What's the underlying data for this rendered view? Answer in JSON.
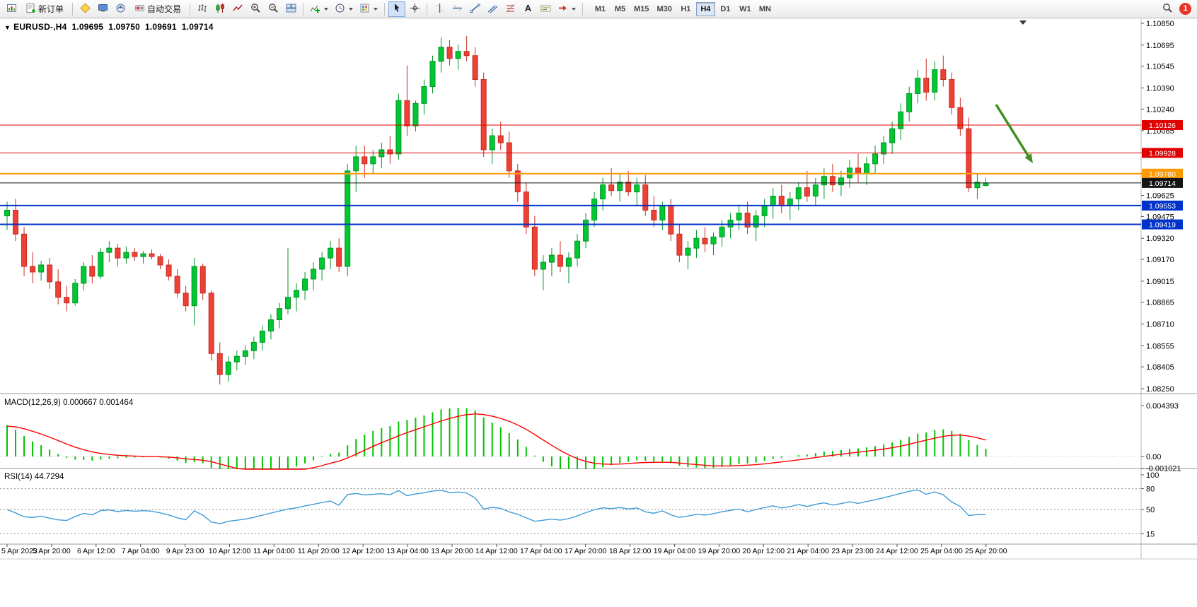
{
  "toolbar": {
    "new_order_label": "新订单",
    "autotrading_label": "自动交易",
    "timeframes": [
      "M1",
      "M5",
      "M15",
      "M30",
      "H1",
      "H4",
      "D1",
      "W1",
      "MN"
    ],
    "active_timeframe": "H4",
    "notification_count": "1"
  },
  "chart": {
    "symbol": "EURUSD-,H4",
    "ohlc": {
      "open": "1.09695",
      "high": "1.09750",
      "low": "1.09691",
      "close": "1.09714"
    },
    "price_axis_labels": [
      "1.10850",
      "1.10695",
      "1.10545",
      "1.10390",
      "1.10240",
      "1.10085",
      "1.09930",
      "1.09780",
      "1.09625",
      "1.09475",
      "1.09320",
      "1.09170",
      "1.09015",
      "1.08865",
      "1.08710",
      "1.08555",
      "1.08405",
      "1.08250"
    ],
    "hlines": [
      {
        "label": "1.10126",
        "price": 1.10126,
        "color": "#e00000",
        "width": 1
      },
      {
        "label": "1.09928",
        "price": 1.09928,
        "color": "#e00000",
        "width": 1
      },
      {
        "label": "1.09780",
        "price": 1.0978,
        "color": "#ff9900",
        "width": 2
      },
      {
        "label": "1.09714",
        "price": 1.09714,
        "color": "#141414",
        "width": 1
      },
      {
        "label": "1.09553",
        "price": 1.09553,
        "color": "#0033cc",
        "width": 2
      },
      {
        "label": "1.09419",
        "price": 1.09419,
        "color": "#0033cc",
        "width": 2
      }
    ],
    "time_axis_labels": [
      "5 Apr 2023",
      "5 Apr 20:00",
      "6 Apr 12:00",
      "7 Apr 04:00",
      "9 Apr 23:00",
      "10 Apr 12:00",
      "11 Apr 04:00",
      "11 Apr 20:00",
      "12 Apr 12:00",
      "13 Apr 04:00",
      "13 Apr 20:00",
      "14 Apr 12:00",
      "17 Apr 04:00",
      "17 Apr 20:00",
      "18 Apr 12:00",
      "19 Apr 04:00",
      "19 Apr 20:00",
      "20 Apr 12:00",
      "21 Apr 04:00",
      "23 Apr 23:00",
      "24 Apr 12:00",
      "25 Apr 04:00",
      "25 Apr 20:00"
    ],
    "colors": {
      "up": "#00c832",
      "up_stroke": "#009623",
      "down": "#ee4136",
      "down_stroke": "#c62c22",
      "macd_bar": "#00c400",
      "macd_signal": "#ff0000",
      "rsi_line": "#3e9bd8",
      "annotation": "#3f8f1f"
    }
  },
  "macd": {
    "label": "MACD(12,26,9) 0.000667 0.001464",
    "axis_labels": [
      "0.004393",
      "0.00",
      "-0.001021"
    ]
  },
  "rsi": {
    "label": "RSI(14) 44.7294",
    "axis_labels": [
      "100",
      "80",
      "50",
      "15"
    ],
    "levels": [
      80,
      50,
      15
    ]
  },
  "chart_data": {
    "type": "candlestick",
    "symbol": "EURUSD",
    "timeframe": "H4",
    "date_range": "5 Apr 2023 - 25 Apr 2023",
    "price_range": [
      1.0825,
      1.1085
    ],
    "columns": [
      "open",
      "high",
      "low",
      "close"
    ],
    "candles": [
      [
        1.0948,
        1.0958,
        1.0938,
        1.0952
      ],
      [
        1.0952,
        1.096,
        1.093,
        1.0935
      ],
      [
        1.0935,
        1.094,
        1.0905,
        1.0912
      ],
      [
        1.0912,
        1.0922,
        1.09,
        1.0908
      ],
      [
        1.0908,
        1.0916,
        1.0902,
        1.0913
      ],
      [
        1.0913,
        1.0918,
        1.0896,
        1.0901
      ],
      [
        1.0901,
        1.091,
        1.0885,
        1.089
      ],
      [
        1.089,
        1.0898,
        1.088,
        1.0886
      ],
      [
        1.0886,
        1.0903,
        1.0884,
        1.09
      ],
      [
        1.09,
        1.0915,
        1.0895,
        1.0912
      ],
      [
        1.0912,
        1.092,
        1.09,
        1.0905
      ],
      [
        1.0905,
        1.0925,
        1.0903,
        1.0922
      ],
      [
        1.0922,
        1.093,
        1.0915,
        1.0925
      ],
      [
        1.0925,
        1.0928,
        1.0912,
        1.0918
      ],
      [
        1.0918,
        1.0926,
        1.0914,
        1.0922
      ],
      [
        1.0922,
        1.0925,
        1.0916,
        1.0919
      ],
      [
        1.0919,
        1.0923,
        1.0914,
        1.0921
      ],
      [
        1.0921,
        1.0924,
        1.0917,
        1.0919
      ],
      [
        1.0919,
        1.0921,
        1.091,
        1.0913
      ],
      [
        1.0913,
        1.0917,
        1.0902,
        1.0905
      ],
      [
        1.0905,
        1.091,
        1.089,
        1.0893
      ],
      [
        1.0893,
        1.0898,
        1.088,
        1.0884
      ],
      [
        1.0884,
        1.0918,
        1.087,
        1.0912
      ],
      [
        1.0912,
        1.0914,
        1.0888,
        1.0893
      ],
      [
        1.0893,
        1.0895,
        1.0845,
        1.085
      ],
      [
        1.085,
        1.0858,
        1.0828,
        1.0835
      ],
      [
        1.0835,
        1.0848,
        1.083,
        1.0844
      ],
      [
        1.0844,
        1.0852,
        1.0838,
        1.0848
      ],
      [
        1.0848,
        1.0856,
        1.0842,
        1.0852
      ],
      [
        1.0852,
        1.0862,
        1.0846,
        1.0858
      ],
      [
        1.0858,
        1.087,
        1.0852,
        1.0866
      ],
      [
        1.0866,
        1.0878,
        1.086,
        1.0874
      ],
      [
        1.0874,
        1.0886,
        1.0868,
        1.0882
      ],
      [
        1.0882,
        1.0925,
        1.0878,
        1.089
      ],
      [
        1.089,
        1.09,
        1.088,
        1.0895
      ],
      [
        1.0895,
        1.0908,
        1.0888,
        1.0903
      ],
      [
        1.0903,
        1.0915,
        1.0895,
        1.091
      ],
      [
        1.091,
        1.0922,
        1.0902,
        1.0918
      ],
      [
        1.0918,
        1.093,
        1.091,
        1.0925
      ],
      [
        1.0925,
        1.0932,
        1.0908,
        1.0912
      ],
      [
        1.0912,
        1.0985,
        1.0905,
        1.098
      ],
      [
        1.098,
        1.0998,
        1.0965,
        1.099
      ],
      [
        1.099,
        1.0998,
        1.0975,
        1.0985
      ],
      [
        1.0985,
        1.0995,
        1.0978,
        1.099
      ],
      [
        1.099,
        1.1,
        1.0982,
        1.0995
      ],
      [
        1.0995,
        1.1005,
        1.0985,
        1.0992
      ],
      [
        1.0992,
        1.1035,
        1.0988,
        1.103
      ],
      [
        1.103,
        1.1055,
        1.1005,
        1.1012
      ],
      [
        1.1012,
        1.103,
        1.1008,
        1.1028
      ],
      [
        1.1028,
        1.1045,
        1.102,
        1.104
      ],
      [
        1.104,
        1.1062,
        1.1035,
        1.1058
      ],
      [
        1.1058,
        1.1075,
        1.105,
        1.1068
      ],
      [
        1.1068,
        1.1073,
        1.1055,
        1.106
      ],
      [
        1.106,
        1.107,
        1.1052,
        1.1065
      ],
      [
        1.1065,
        1.1076,
        1.1058,
        1.1062
      ],
      [
        1.1062,
        1.1068,
        1.104,
        1.1045
      ],
      [
        1.1045,
        1.105,
        1.099,
        1.0995
      ],
      [
        1.0995,
        1.101,
        1.0985,
        1.1005
      ],
      [
        1.1005,
        1.1015,
        1.0995,
        1.1
      ],
      [
        1.1,
        1.1008,
        1.0975,
        1.098
      ],
      [
        1.098,
        1.0985,
        1.0958,
        1.0965
      ],
      [
        1.0965,
        1.0972,
        1.0935,
        1.094
      ],
      [
        1.094,
        1.0948,
        1.0905,
        1.091
      ],
      [
        1.091,
        1.092,
        1.0895,
        1.0915
      ],
      [
        1.0915,
        1.0925,
        1.0905,
        1.092
      ],
      [
        1.092,
        1.093,
        1.0908,
        1.0912
      ],
      [
        1.0912,
        1.0922,
        1.09,
        1.0918
      ],
      [
        1.0918,
        1.0935,
        1.0912,
        1.093
      ],
      [
        1.093,
        1.095,
        1.0925,
        1.0945
      ],
      [
        1.0945,
        1.0965,
        1.094,
        1.096
      ],
      [
        1.096,
        1.0975,
        1.0952,
        1.097
      ],
      [
        1.097,
        1.0982,
        1.0962,
        1.0966
      ],
      [
        1.0966,
        1.0978,
        1.0958,
        1.0972
      ],
      [
        1.0972,
        1.098,
        1.0962,
        1.0965
      ],
      [
        1.0965,
        1.0975,
        1.0955,
        1.097
      ],
      [
        1.097,
        1.0977,
        1.0948,
        1.0952
      ],
      [
        1.0952,
        1.0962,
        1.094,
        1.0945
      ],
      [
        1.0945,
        1.0958,
        1.0938,
        1.0955
      ],
      [
        1.0955,
        1.096,
        1.093,
        1.0935
      ],
      [
        1.0935,
        1.0942,
        1.0915,
        1.092
      ],
      [
        1.092,
        1.093,
        1.091,
        1.0925
      ],
      [
        1.0925,
        1.0938,
        1.0918,
        1.0932
      ],
      [
        1.0932,
        1.094,
        1.0922,
        1.0928
      ],
      [
        1.0928,
        1.0936,
        1.092,
        1.0933
      ],
      [
        1.0933,
        1.0945,
        1.0926,
        1.094
      ],
      [
        1.094,
        1.095,
        1.0932,
        1.0945
      ],
      [
        1.0945,
        1.0955,
        1.0938,
        1.095
      ],
      [
        1.095,
        1.0958,
        1.0935,
        1.094
      ],
      [
        1.094,
        1.0952,
        1.093,
        1.0948
      ],
      [
        1.0948,
        1.096,
        1.094,
        1.0955
      ],
      [
        1.0955,
        1.0968,
        1.0946,
        1.0962
      ],
      [
        1.0962,
        1.097,
        1.095,
        1.0955
      ],
      [
        1.0955,
        1.0965,
        1.0945,
        1.096
      ],
      [
        1.096,
        1.0972,
        1.0952,
        1.0968
      ],
      [
        1.0968,
        1.098,
        1.0958,
        1.0962
      ],
      [
        1.0962,
        1.0975,
        1.0955,
        1.097
      ],
      [
        1.097,
        1.0982,
        1.096,
        1.0976
      ],
      [
        1.0976,
        1.0985,
        1.0965,
        1.097
      ],
      [
        1.097,
        1.098,
        1.0962,
        1.0975
      ],
      [
        1.0975,
        1.0988,
        1.0968,
        1.0982
      ],
      [
        1.0982,
        1.0992,
        1.0972,
        1.0978
      ],
      [
        1.0978,
        1.099,
        1.097,
        1.0985
      ],
      [
        1.0985,
        1.0998,
        1.0978,
        1.0992
      ],
      [
        1.0992,
        1.1005,
        1.0985,
        1.1
      ],
      [
        1.1,
        1.1015,
        1.0992,
        1.101
      ],
      [
        1.101,
        1.1028,
        1.1002,
        1.1022
      ],
      [
        1.1022,
        1.104,
        1.1015,
        1.1035
      ],
      [
        1.1035,
        1.1052,
        1.1028,
        1.1046
      ],
      [
        1.1046,
        1.106,
        1.103,
        1.1036
      ],
      [
        1.1036,
        1.1058,
        1.103,
        1.1052
      ],
      [
        1.1052,
        1.1062,
        1.104,
        1.1045
      ],
      [
        1.1045,
        1.105,
        1.102,
        1.1025
      ],
      [
        1.1025,
        1.1032,
        1.1005,
        1.101
      ],
      [
        1.101,
        1.1018,
        1.0965,
        1.0968
      ],
      [
        1.0968,
        1.0978,
        1.096,
        1.0972
      ],
      [
        1.09695,
        1.0975,
        1.09691,
        1.09714
      ]
    ],
    "indicators": [
      {
        "name": "MACD",
        "params": [
          12,
          26,
          9
        ],
        "current_values": [
          0.000667,
          0.001464
        ],
        "display_range": [
          -0.001021,
          0.004393
        ]
      },
      {
        "name": "RSI",
        "params": [
          14
        ],
        "current_value": 44.7294,
        "levels": [
          80,
          50,
          15
        ]
      }
    ]
  }
}
